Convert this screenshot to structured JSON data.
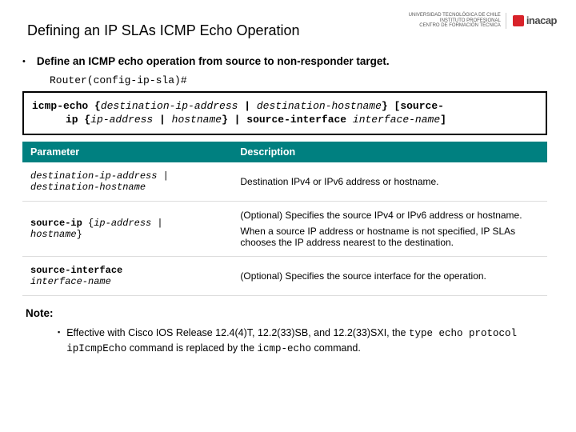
{
  "header": {
    "title": "Defining an IP SLAs ICMP Echo Operation",
    "uni_line1": "UNIVERSIDAD TECNOLÓGICA DE CHILE",
    "uni_line2": "INSTITUTO PROFESIONAL",
    "uni_line3": "CENTRO DE FORMACIÓN TÉCNICA",
    "brand": "inacap"
  },
  "main": {
    "bullet_text": "Define an ICMP echo operation from source to non-responder target.",
    "prompt": "Router(config-ip-sla)#",
    "syntax": {
      "cmd1": "icmp-echo ",
      "brace1": "{",
      "dest_ip": "destination-ip-address",
      "pipe1": " | ",
      "dest_host": "destination-hostname",
      "brace2": "} ",
      "src_open": "[source-",
      "cmd2": "ip ",
      "brace3": "{",
      "ip_addr": "ip-address",
      "pipe2": " | ",
      "hostname": "hostname",
      "brace4": "} ",
      "pipe3": "| ",
      "src_if": "source-interface ",
      "if_name": "interface-name",
      "close": "]"
    },
    "table": {
      "col1": "Parameter",
      "col2": "Description",
      "rows": [
        {
          "param_a": "destination-ip-address",
          "param_sep": " | ",
          "param_b": "destination-hostname",
          "desc": "Destination IPv4 or IPv6 address or hostname."
        },
        {
          "param_bold": "source-ip ",
          "param_brace_open": "{",
          "param_i1": "ip-address",
          "param_pipe": " | ",
          "param_i2": "hostname",
          "param_brace_close": "}",
          "desc1": "(Optional) Specifies the source IPv4 or IPv6 address or hostname.",
          "desc2": "When a source IP address or hostname is not specified, IP SLAs chooses the IP address nearest to the destination."
        },
        {
          "param_bold": "source-interface ",
          "param_i1": "interface-name",
          "desc": "(Optional) Specifies the source interface for the operation."
        }
      ]
    },
    "note": {
      "label": "Note:",
      "text_a": "Effective with Cisco IOS Release 12.4(4)T, 12.2(33)SB, and 12.2(33)SXI, the ",
      "code1": "type echo protocol ipIcmpEcho",
      "text_b": " command is replaced by the ",
      "code2": "icmp-echo",
      "text_c": " command."
    }
  },
  "colors": {
    "teal": "#008080",
    "red": "#d8232a"
  }
}
